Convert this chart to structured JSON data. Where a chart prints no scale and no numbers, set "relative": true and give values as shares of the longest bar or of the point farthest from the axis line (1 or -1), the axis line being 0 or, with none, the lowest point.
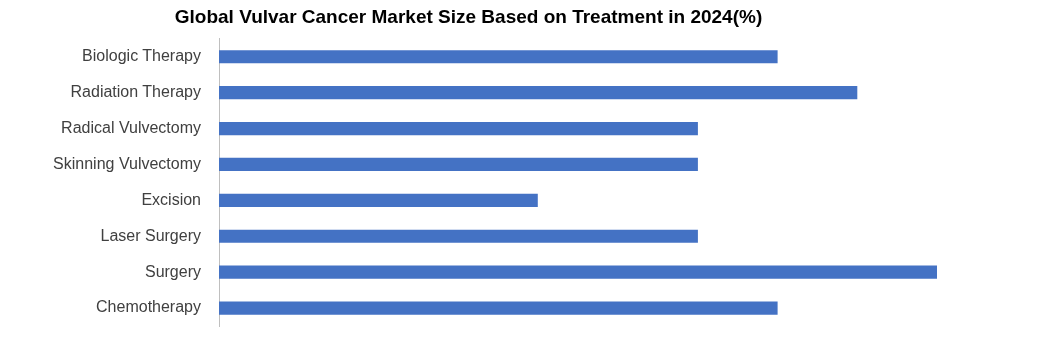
{
  "chart_data": {
    "type": "bar",
    "orientation": "horizontal",
    "relative": true,
    "title": "Global Vulvar Cancer Market Size Based on Treatment in 2024(%)",
    "categories": [
      "Biologic Therapy",
      "Radiation Therapy",
      "Radical Vulvectomy",
      "Skinning Vulvectomy",
      "Excision",
      "Laser Surgery",
      "Surgery",
      "Chemotherapy"
    ],
    "values": [
      0.778,
      0.889,
      0.667,
      0.667,
      0.444,
      0.667,
      1,
      0.778
    ],
    "color": "#4472c4"
  }
}
